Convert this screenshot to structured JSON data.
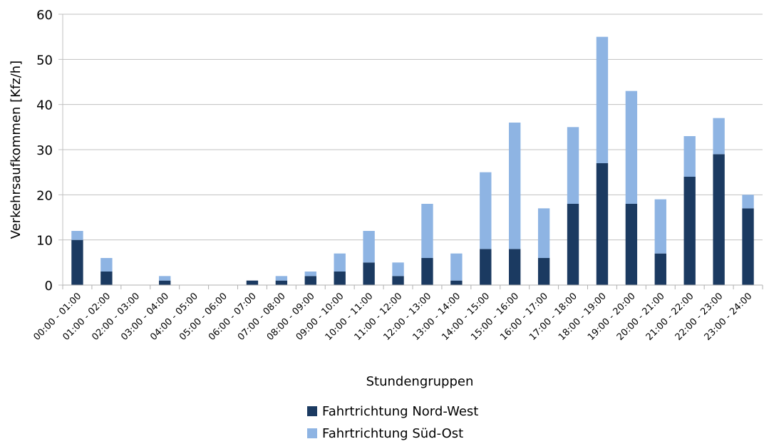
{
  "chart_data": {
    "type": "bar",
    "stacked": true,
    "categories": [
      "00:00 - 01:00",
      "01:00 - 02:00",
      "02:00 - 03:00",
      "03:00 - 04:00",
      "04:00 - 05:00",
      "05:00 - 06:00",
      "06:00 - 07:00",
      "07:00 - 08:00",
      "08:00 - 09:00",
      "09:00 - 10:00",
      "10:00 - 11:00",
      "11:00 - 12:00",
      "12:00 - 13:00",
      "13:00 - 14:00",
      "14:00 - 15:00",
      "15:00 - 16:00",
      "16:00 - 17:00",
      "17:00 - 18:00",
      "18:00 - 19:00",
      "19:00 - 20:00",
      "20:00 - 21:00",
      "21:00 - 22:00",
      "22:00 - 23:00",
      "23:00 - 24:00"
    ],
    "series": [
      {
        "name": "Fahrtrichtung Nord-West",
        "color": "#1b3a61",
        "values": [
          10,
          3,
          0,
          1,
          0,
          0,
          1,
          1,
          2,
          3,
          5,
          2,
          6,
          1,
          8,
          8,
          6,
          18,
          27,
          18,
          7,
          24,
          29,
          17
        ]
      },
      {
        "name": "Fahrtrichtung Süd-Ost",
        "color": "#8eb4e3",
        "values": [
          2,
          3,
          0,
          1,
          0,
          0,
          0,
          1,
          1,
          4,
          7,
          3,
          12,
          6,
          17,
          28,
          11,
          17,
          28,
          25,
          12,
          9,
          8,
          3
        ]
      }
    ],
    "xlabel": "Stundengruppen",
    "ylabel": "Verkehrsaufkommen [Kfz/h]",
    "ylim": [
      0,
      60
    ],
    "yticks": [
      0,
      10,
      20,
      30,
      40,
      50,
      60
    ],
    "grid": true,
    "legend_position": "bottom"
  }
}
